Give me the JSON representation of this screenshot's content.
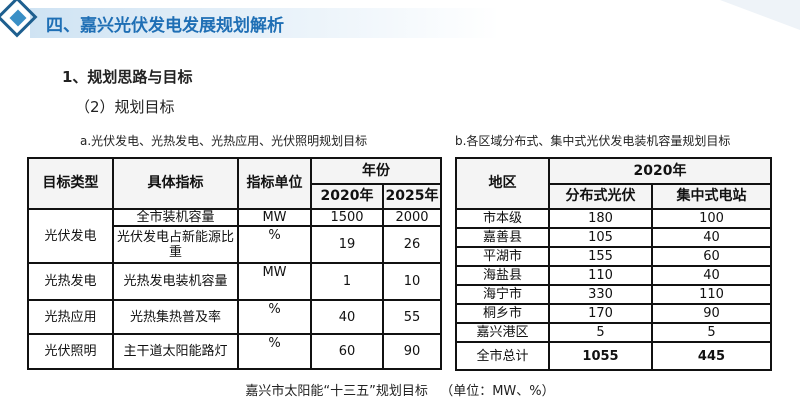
{
  "header": {
    "title": "四、嘉兴光伏发电发展规划解析"
  },
  "section": {
    "heading": "1、规划思路与目标",
    "subheading": "（2）规划目标"
  },
  "table_a": {
    "caption": "a.光伏发电、光热发电、光热应用、光伏照明规划目标",
    "headers": [
      "目标类型",
      "具体指标",
      "指标单位",
      "年份",
      "2020年",
      "2025年"
    ],
    "groups": [
      {
        "type": "光伏发电",
        "rows": [
          [
            "全市装机容量",
            "MW",
            1500,
            2000
          ],
          [
            "光伏发电占新能源比重",
            "%",
            19,
            26
          ]
        ]
      },
      {
        "type": "光热发电",
        "rows": [
          [
            "光热发电装机容量",
            "MW",
            1,
            10
          ]
        ]
      },
      {
        "type": "光热应用",
        "rows": [
          [
            "光热集热普及率",
            "%",
            40,
            55
          ]
        ]
      },
      {
        "type": "光伏照明",
        "rows": [
          [
            "主干道太阳能路灯",
            "%",
            60,
            90
          ]
        ]
      }
    ]
  },
  "table_b": {
    "caption": "b.各区域分布式、集中式光伏发电装机容量规划目标",
    "headers": [
      "地区",
      "2020年",
      "分布式光伏",
      "集中式电站"
    ],
    "rows": [
      [
        "市本级",
        180,
        100
      ],
      [
        "嘉善县",
        105,
        40
      ],
      [
        "平湖市",
        155,
        60
      ],
      [
        "海盐县",
        110,
        40
      ],
      [
        "海宁市",
        330,
        110
      ],
      [
        "桐乡市",
        170,
        90
      ],
      [
        "嘉兴港区",
        5,
        5
      ],
      [
        "全市总计",
        1055,
        445
      ]
    ]
  },
  "footer": {
    "caption": "嘉兴市太阳能“十三五”规划目标   （单位：MW、%）"
  }
}
